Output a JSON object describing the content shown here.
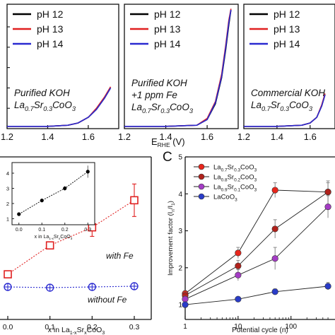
{
  "figure": {
    "shared_xlabel_main": "E",
    "shared_xlabel_sub": "RHE",
    "shared_xlabel_unit": " (V)",
    "panel_c_letter": "C"
  },
  "chart_data": [
    {
      "type": "line",
      "panel": "top-left",
      "x_ticks": [
        "1.2",
        "1.4",
        "1.6"
      ],
      "xlim": [
        1.2,
        1.75
      ],
      "legend": [
        "pH 12",
        "pH 13",
        "pH 14"
      ],
      "legend_position": "top",
      "annotation_lines": [
        "Purified KOH",
        "La0.7Sr0.3CoO3"
      ],
      "series": [
        {
          "name": "pH 12",
          "color": "#000000",
          "x": [
            1.2,
            1.3,
            1.4,
            1.5,
            1.55,
            1.6,
            1.64,
            1.68,
            1.71
          ],
          "y": [
            0.02,
            0.02,
            0.02,
            0.03,
            0.05,
            0.1,
            0.17,
            0.27,
            0.36
          ]
        },
        {
          "name": "pH 13",
          "color": "#e02020",
          "x": [
            1.2,
            1.3,
            1.4,
            1.5,
            1.55,
            1.6,
            1.64,
            1.68,
            1.71
          ],
          "y": [
            0.02,
            0.02,
            0.02,
            0.03,
            0.05,
            0.1,
            0.18,
            0.28,
            0.37
          ]
        },
        {
          "name": "pH 14",
          "color": "#2a2ad0",
          "x": [
            1.2,
            1.3,
            1.4,
            1.5,
            1.55,
            1.6,
            1.64,
            1.68,
            1.71
          ],
          "y": [
            0.02,
            0.02,
            0.02,
            0.03,
            0.05,
            0.1,
            0.17,
            0.27,
            0.36
          ]
        }
      ]
    },
    {
      "type": "line",
      "panel": "top-middle",
      "x_ticks": [
        "1.2",
        "1.4",
        "1.6"
      ],
      "xlim": [
        1.2,
        1.75
      ],
      "legend": [
        "pH 12",
        "pH 13",
        "pH 14"
      ],
      "legend_position": "top",
      "annotation_lines": [
        "Purified KOH",
        "+1 ppm Fe",
        "La0.7Sr0.3CoO3"
      ],
      "series": [
        {
          "name": "pH 12",
          "color": "#000000",
          "x": [
            1.2,
            1.4,
            1.55,
            1.6,
            1.64,
            1.67,
            1.69,
            1.705,
            1.715
          ],
          "y": [
            0.02,
            0.02,
            0.03,
            0.08,
            0.22,
            0.45,
            0.7,
            0.92,
            1.05
          ]
        },
        {
          "name": "pH 13",
          "color": "#e02020",
          "x": [
            1.2,
            1.4,
            1.55,
            1.6,
            1.64,
            1.67,
            1.69,
            1.705,
            1.715
          ],
          "y": [
            0.02,
            0.02,
            0.03,
            0.09,
            0.24,
            0.48,
            0.74,
            0.96,
            1.06
          ]
        },
        {
          "name": "pH 14",
          "color": "#2a2ad0",
          "x": [
            1.2,
            1.4,
            1.55,
            1.6,
            1.64,
            1.67,
            1.69,
            1.705,
            1.715
          ],
          "y": [
            0.02,
            0.02,
            0.03,
            0.08,
            0.23,
            0.46,
            0.72,
            0.94,
            1.05
          ]
        }
      ]
    },
    {
      "type": "line",
      "panel": "top-right",
      "x_ticks": [
        "1.2",
        "1.4",
        "1.6"
      ],
      "xlim": [
        1.2,
        1.75
      ],
      "legend": [
        "pH 12",
        "pH 13",
        "pH 14"
      ],
      "legend_position": "top",
      "annotation_lines": [
        "Commercial KOH",
        "La0.7Sr0.3CoO3"
      ],
      "series": [
        {
          "name": "pH 12",
          "color": "#000000",
          "x": [
            1.2,
            1.4,
            1.55,
            1.6,
            1.64,
            1.67,
            1.69
          ],
          "y": [
            0.02,
            0.02,
            0.03,
            0.05,
            0.1,
            0.2,
            0.3
          ]
        },
        {
          "name": "pH 13",
          "color": "#e02020",
          "x": [
            1.2,
            1.4,
            1.55,
            1.6,
            1.64,
            1.67,
            1.69
          ],
          "y": [
            0.02,
            0.02,
            0.03,
            0.05,
            0.1,
            0.21,
            0.31
          ]
        },
        {
          "name": "pH 14",
          "color": "#2a2ad0",
          "x": [
            1.2,
            1.4,
            1.55,
            1.6,
            1.64,
            1.67,
            1.69
          ],
          "y": [
            0.02,
            0.02,
            0.03,
            0.05,
            0.1,
            0.2,
            0.3
          ]
        }
      ]
    },
    {
      "type": "scatter",
      "panel": "bottom-left",
      "xlabel_main": "x in La",
      "xlabel_sub1": "1-x",
      "xlabel_mid": "Sr",
      "xlabel_sub2": "x",
      "xlabel_end": "CoO",
      "xlabel_sub3": "3",
      "x_ticks": [
        "0.0",
        "0.1",
        "0.2",
        "0.3"
      ],
      "xlim": [
        -0.01,
        0.34
      ],
      "ylim": [
        0,
        4.5
      ],
      "series": [
        {
          "name": "with Fe",
          "color": "#e02020",
          "marker": "square-open",
          "x": [
            0.0,
            0.1,
            0.2,
            0.3
          ],
          "y": [
            1.25,
            2.05,
            2.55,
            3.3
          ],
          "err": [
            0.05,
            0.05,
            0.25,
            0.45
          ]
        },
        {
          "name": "without Fe",
          "color": "#2a2ad0",
          "marker": "circle-plus",
          "x": [
            0.0,
            0.1,
            0.2,
            0.3
          ],
          "y": [
            0.9,
            0.88,
            0.9,
            0.92
          ],
          "err": [
            0.03,
            0.03,
            0.03,
            0.03
          ]
        }
      ],
      "inset": {
        "x_ticks": [
          "0.0",
          "0.1",
          "0.2",
          "0.3"
        ],
        "y_ticks": [
          "1",
          "2",
          "3",
          "4"
        ],
        "xlim": [
          -0.03,
          0.33
        ],
        "ylim": [
          0.6,
          4.7
        ],
        "xlabel_main": "x in La",
        "xlabel_sub1": "1-x",
        "xlabel_mid": "Sr",
        "xlabel_sub2": "x",
        "xlabel_end": "CoO",
        "xlabel_sub3": "3",
        "series": [
          {
            "name": "",
            "color": "#000000",
            "x": [
              0.0,
              0.1,
              0.2,
              0.3
            ],
            "y": [
              1.3,
              2.2,
              3.0,
              4.1
            ],
            "err": [
              0.05,
              0.1,
              0.15,
              0.4
            ]
          }
        ]
      }
    },
    {
      "type": "scatter",
      "panel": "bottom-right",
      "xlabel": "Potential cycle (n)",
      "ylabel_main": "Improvement factor (I",
      "ylabel_sub1": "n",
      "ylabel_mid": "/I",
      "ylabel_sub2": "1",
      "ylabel_end": ")",
      "x_scale": "log",
      "x_ticks": [
        "1",
        "10",
        "100"
      ],
      "y_ticks": [
        "1",
        "2",
        "3",
        "4",
        "5"
      ],
      "xlim": [
        1,
        600
      ],
      "ylim": [
        0.6,
        5.0
      ],
      "legend_position": "upper-left",
      "series": [
        {
          "name": "La0.7Sr0.3CoO3",
          "n1": "La",
          "s1": "0.7",
          "n2": "Sr",
          "s2": "0.3",
          "n3": "CoO",
          "s3": "3",
          "color": "#e8261c",
          "x": [
            1,
            10,
            50,
            500
          ],
          "y": [
            1.3,
            2.4,
            4.1,
            4.05
          ],
          "err": [
            0.08,
            0.15,
            0.2,
            0.25
          ]
        },
        {
          "name": "La0.8Sr0.2CoO3",
          "n1": "La",
          "s1": "0.8",
          "n2": "Sr",
          "s2": "0.2",
          "n3": "CoO",
          "s3": "3",
          "color": "#b0221c",
          "x": [
            1,
            10,
            50,
            500
          ],
          "y": [
            1.25,
            2.05,
            3.05,
            4.05
          ],
          "err": [
            0.08,
            0.15,
            0.25,
            0.3
          ]
        },
        {
          "name": "La0.9Sr0.1CoO3",
          "n1": "La",
          "s1": "0.9",
          "n2": "Sr",
          "s2": "0.1",
          "n3": "CoO",
          "s3": "3",
          "color": "#a43cc4",
          "x": [
            1,
            10,
            50,
            500
          ],
          "y": [
            1.15,
            1.8,
            2.25,
            3.65
          ],
          "err": [
            0.08,
            0.15,
            0.3,
            0.3
          ]
        },
        {
          "name": "LaCoO3",
          "n1": "LaCoO",
          "s1": "",
          "n2": "",
          "s2": "",
          "n3": "",
          "s3": "3",
          "color": "#2a3cc8",
          "x": [
            1,
            10,
            50,
            500
          ],
          "y": [
            1.0,
            1.15,
            1.35,
            1.5
          ],
          "err": [
            0.05,
            0.05,
            0.08,
            0.1
          ]
        }
      ]
    }
  ]
}
